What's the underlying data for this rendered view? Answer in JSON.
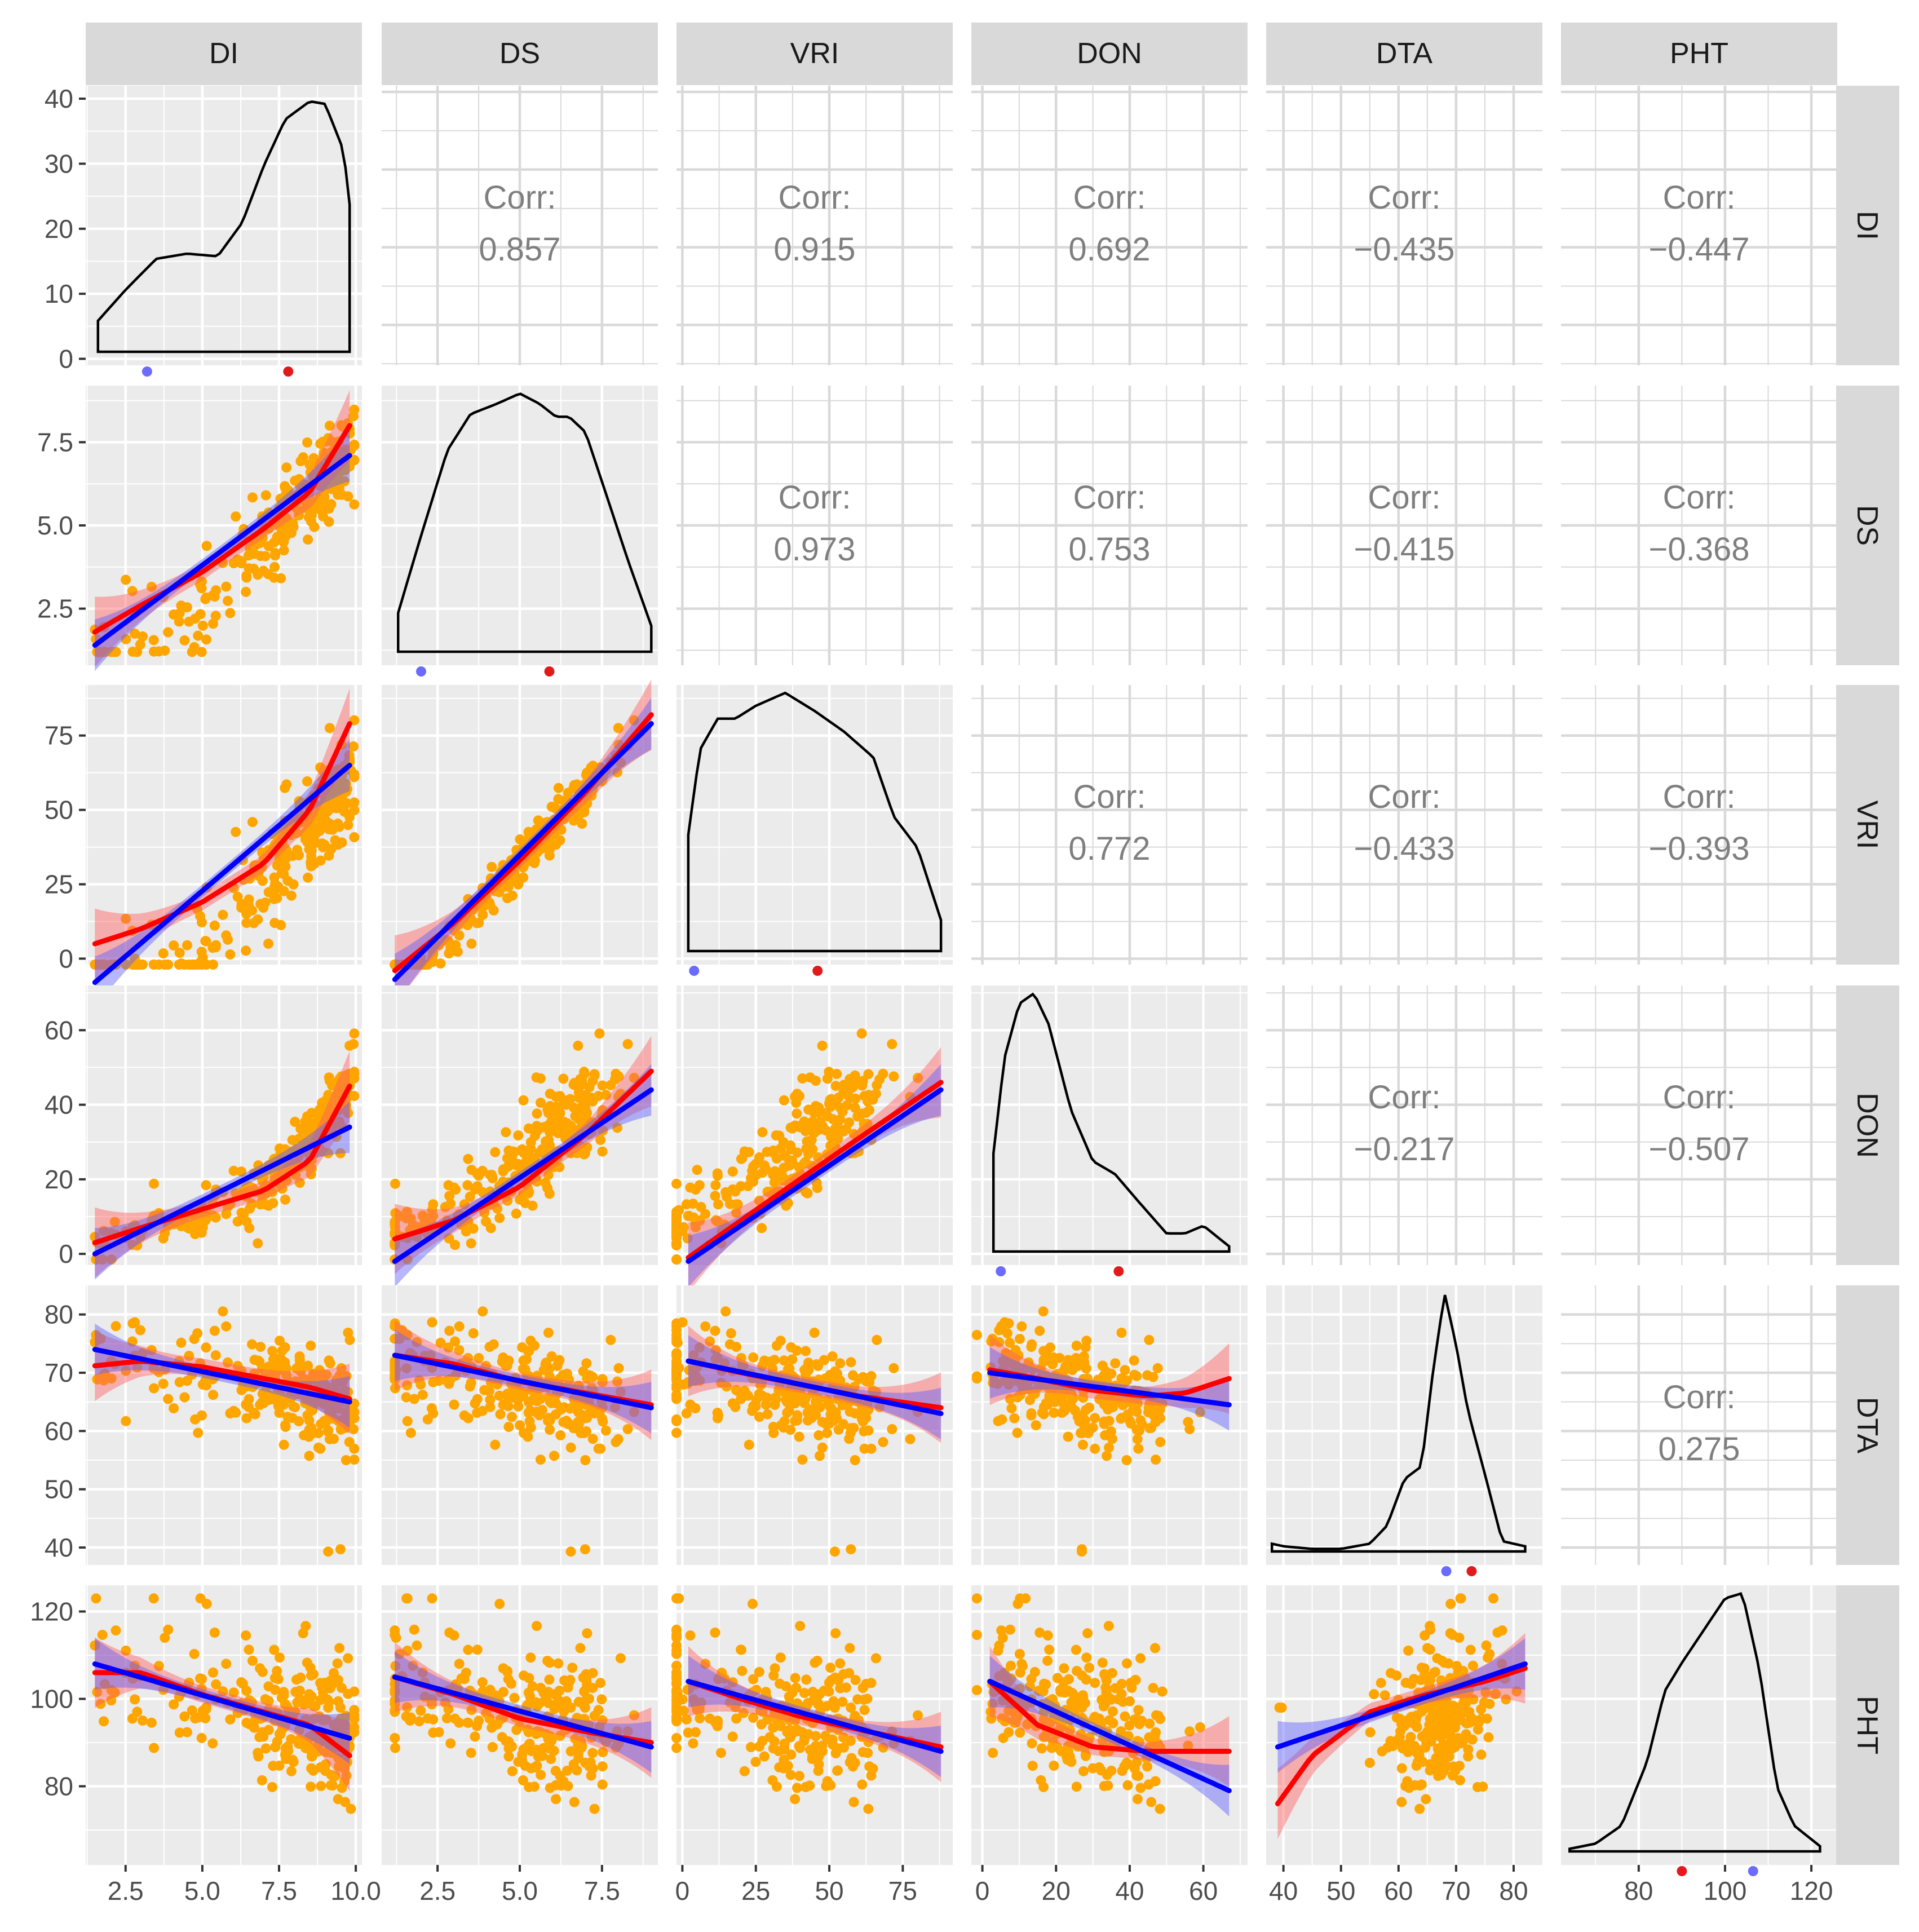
{
  "chart_data": {
    "type": "scatter",
    "variables": [
      "DI",
      "DS",
      "VRI",
      "DON",
      "DTA",
      "PHT"
    ],
    "corr_label": "Corr:",
    "axes": {
      "DI": {
        "range": [
          1.2,
          10.2
        ],
        "ticks": [
          2.5,
          5.0,
          7.5,
          10.0
        ],
        "tick_labels": [
          "2.5",
          "5.0",
          "7.5",
          "10.0"
        ]
      },
      "DS": {
        "range": [
          0.8,
          9.2
        ],
        "ticks": [
          2.5,
          5.0,
          7.5
        ],
        "tick_labels": [
          "2.5",
          "5.0",
          "7.5"
        ]
      },
      "VRI": {
        "range": [
          -2,
          92
        ],
        "ticks": [
          0,
          25,
          50,
          75
        ],
        "tick_labels": [
          "0",
          "25",
          "50",
          "75"
        ]
      },
      "DON": {
        "range": [
          -3,
          72
        ],
        "ticks": [
          0,
          20,
          40,
          60
        ],
        "tick_labels": [
          "0",
          "20",
          "40",
          "60"
        ]
      },
      "DTA": {
        "range": [
          37,
          85
        ],
        "ticks": [
          40,
          50,
          60,
          70,
          80
        ],
        "tick_labels": [
          "40",
          "50",
          "60",
          "70",
          "80"
        ]
      },
      "PHT": {
        "range": [
          62,
          126
        ],
        "ticks": [
          80,
          100,
          120
        ],
        "tick_labels": [
          "80",
          "100",
          "120"
        ]
      }
    },
    "diag_density_axis": {
      "variable": "DI",
      "range": [
        -1,
        42
      ],
      "ticks": [
        0,
        10,
        20,
        30,
        40
      ],
      "tick_labels": [
        "0",
        "10",
        "20",
        "30",
        "40"
      ]
    },
    "correlations": [
      {
        "row": "DI",
        "col": "DS",
        "value": "0.857"
      },
      {
        "row": "DI",
        "col": "VRI",
        "value": "0.915"
      },
      {
        "row": "DI",
        "col": "DON",
        "value": "0.692"
      },
      {
        "row": "DI",
        "col": "DTA",
        "value": "−0.435"
      },
      {
        "row": "DI",
        "col": "PHT",
        "value": "−0.447"
      },
      {
        "row": "DS",
        "col": "VRI",
        "value": "0.973"
      },
      {
        "row": "DS",
        "col": "DON",
        "value": "0.753"
      },
      {
        "row": "DS",
        "col": "DTA",
        "value": "−0.415"
      },
      {
        "row": "DS",
        "col": "PHT",
        "value": "−0.368"
      },
      {
        "row": "VRI",
        "col": "DON",
        "value": "0.772"
      },
      {
        "row": "VRI",
        "col": "DTA",
        "value": "−0.433"
      },
      {
        "row": "VRI",
        "col": "PHT",
        "value": "−0.393"
      },
      {
        "row": "DON",
        "col": "DTA",
        "value": "−0.217"
      },
      {
        "row": "DON",
        "col": "PHT",
        "value": "−0.507"
      },
      {
        "row": "DTA",
        "col": "PHT",
        "value": "0.275"
      }
    ],
    "densities": {
      "DI": {
        "x": [
          1.6,
          2.5,
          3.5,
          4.5,
          5.5,
          6.3,
          7.0,
          7.7,
          8.5,
          9.0,
          9.6,
          9.8
        ],
        "y": [
          0.12,
          0.24,
          0.36,
          0.38,
          0.37,
          0.5,
          0.72,
          0.9,
          0.97,
          0.96,
          0.78,
          0.57
        ]
      },
      "DS": {
        "x": [
          1.3,
          2.0,
          2.8,
          3.5,
          4.3,
          5.0,
          5.6,
          6.1,
          6.5,
          7.0,
          7.6,
          8.3,
          9.0
        ],
        "y": [
          0.15,
          0.45,
          0.78,
          0.92,
          0.96,
          1.0,
          0.96,
          0.91,
          0.91,
          0.85,
          0.62,
          0.35,
          0.1
        ]
      },
      "VRI": {
        "x": [
          2,
          6,
          12,
          18,
          25,
          35,
          45,
          55,
          65,
          72,
          80,
          88
        ],
        "y": [
          0.45,
          0.78,
          0.9,
          0.9,
          0.95,
          1.0,
          0.93,
          0.85,
          0.75,
          0.52,
          0.4,
          0.12
        ]
      },
      "DON": {
        "x": [
          3,
          6,
          10,
          14,
          18,
          24,
          30,
          36,
          42,
          50,
          55,
          60,
          67
        ],
        "y": [
          0.38,
          0.75,
          0.96,
          1.0,
          0.88,
          0.55,
          0.35,
          0.3,
          0.2,
          0.07,
          0.07,
          0.1,
          0.02
        ]
      },
      "DTA": {
        "x": [
          38,
          40,
          45,
          50,
          55,
          58,
          61,
          64,
          66,
          68,
          70,
          72,
          75,
          78,
          82
        ],
        "y": [
          0.03,
          0.02,
          0.01,
          0.01,
          0.03,
          0.1,
          0.28,
          0.33,
          0.7,
          1.0,
          0.8,
          0.55,
          0.3,
          0.04,
          0.02
        ]
      },
      "PHT": {
        "x": [
          64,
          70,
          76,
          82,
          86,
          90,
          96,
          100,
          104,
          108,
          112,
          116,
          122
        ],
        "y": [
          0.01,
          0.03,
          0.1,
          0.35,
          0.62,
          0.73,
          0.88,
          0.98,
          1.0,
          0.7,
          0.25,
          0.1,
          0.02
        ]
      }
    },
    "diag_markers": {
      "DI": {
        "blue": 3.2,
        "red": 7.8
      },
      "DS": {
        "blue": 2.0,
        "red": 5.9
      },
      "VRI": {
        "blue": 4,
        "red": 46
      },
      "DON": {
        "blue": 5,
        "red": 37
      },
      "DTA": {
        "blue": 68.3,
        "red": 72.7
      },
      "PHT": {
        "blue": 106.5,
        "red": 90
      }
    },
    "fits": {
      "DS|DI": {
        "loess": {
          "x": [
            1.5,
            3,
            5,
            7,
            8.5,
            9.8
          ],
          "y": [
            1.8,
            2.6,
            3.6,
            4.9,
            6.0,
            8.0
          ]
        },
        "lm": {
          "x": [
            1.5,
            9.8
          ],
          "y": [
            1.4,
            7.1
          ]
        }
      },
      "VRI|DI": {
        "loess": {
          "x": [
            1.5,
            3,
            5,
            7,
            8.5,
            9.8
          ],
          "y": [
            5,
            10,
            19,
            32,
            50,
            79
          ]
        },
        "lm": {
          "x": [
            1.5,
            9.8
          ],
          "y": [
            -8,
            65
          ]
        }
      },
      "VRI|DS": {
        "loess": {
          "x": [
            1.2,
            3,
            5,
            7,
            9
          ],
          "y": [
            -4,
            12,
            33,
            56,
            82
          ]
        },
        "lm": {
          "x": [
            1.2,
            9
          ],
          "y": [
            -7,
            79
          ]
        }
      },
      "DON|DI": {
        "loess": {
          "x": [
            1.5,
            3,
            5,
            7,
            8.5,
            9.8
          ],
          "y": [
            3,
            7,
            12,
            17,
            25,
            45
          ]
        },
        "lm": {
          "x": [
            1.5,
            9.8
          ],
          "y": [
            0,
            34
          ]
        }
      },
      "DON|DS": {
        "loess": {
          "x": [
            1.2,
            3,
            5,
            7,
            9
          ],
          "y": [
            4,
            9,
            18,
            32,
            49
          ]
        },
        "lm": {
          "x": [
            1.2,
            9
          ],
          "y": [
            -2,
            44
          ]
        }
      },
      "DON|VRI": {
        "loess": {
          "x": [
            2,
            20,
            40,
            60,
            88
          ],
          "y": [
            -1,
            9,
            20,
            31,
            46
          ]
        },
        "lm": {
          "x": [
            2,
            88
          ],
          "y": [
            -2,
            44
          ]
        }
      },
      "DTA|DI": {
        "loess": {
          "x": [
            1.5,
            3,
            5,
            7,
            8.5,
            9.8
          ],
          "y": [
            71.2,
            72,
            71,
            69,
            67.5,
            65.5
          ]
        },
        "lm": {
          "x": [
            1.5,
            9.8
          ],
          "y": [
            74,
            65
          ]
        }
      },
      "DTA|DS": {
        "loess": {
          "x": [
            1.2,
            3,
            5,
            7,
            9
          ],
          "y": [
            73,
            71.5,
            68.5,
            66.5,
            64.5
          ]
        },
        "lm": {
          "x": [
            1.2,
            9
          ],
          "y": [
            73,
            64
          ]
        }
      },
      "DTA|VRI": {
        "loess": {
          "x": [
            2,
            20,
            40,
            60,
            88
          ],
          "y": [
            72,
            70,
            68,
            66,
            64
          ]
        },
        "lm": {
          "x": [
            2,
            88
          ],
          "y": [
            72,
            63
          ]
        }
      },
      "DTA|DON": {
        "loess": {
          "x": [
            2,
            15,
            30,
            45,
            55,
            67
          ],
          "y": [
            70.5,
            69,
            67,
            66,
            66.5,
            69
          ]
        },
        "lm": {
          "x": [
            2,
            67
          ],
          "y": [
            70,
            64.5
          ]
        }
      },
      "PHT|DI": {
        "loess": {
          "x": [
            1.5,
            3,
            5,
            7,
            8.5,
            9.8
          ],
          "y": [
            106,
            106,
            101,
            97,
            94,
            87
          ]
        },
        "lm": {
          "x": [
            1.5,
            9.8
          ],
          "y": [
            108,
            91
          ]
        }
      },
      "PHT|DS": {
        "loess": {
          "x": [
            1.2,
            3,
            5,
            7,
            9
          ],
          "y": [
            105,
            101,
            95.5,
            92.5,
            90
          ]
        },
        "lm": {
          "x": [
            1.2,
            9
          ],
          "y": [
            105,
            89
          ]
        }
      },
      "PHT|VRI": {
        "loess": {
          "x": [
            2,
            20,
            40,
            60,
            88
          ],
          "y": [
            104,
            100,
            96,
            93,
            89
          ]
        },
        "lm": {
          "x": [
            2,
            88
          ],
          "y": [
            104,
            88
          ]
        }
      },
      "PHT|DON": {
        "loess": {
          "x": [
            2,
            15,
            30,
            45,
            55,
            67
          ],
          "y": [
            104,
            94,
            89,
            88,
            88,
            88
          ]
        },
        "lm": {
          "x": [
            2,
            67
          ],
          "y": [
            104,
            79
          ]
        }
      },
      "PHT|DTA": {
        "loess": {
          "x": [
            39,
            45,
            55,
            65,
            75,
            82
          ],
          "y": [
            76,
            87,
            97,
            101,
            104,
            107
          ]
        },
        "lm": {
          "x": [
            39,
            82
          ],
          "y": [
            89,
            108
          ]
        }
      }
    }
  }
}
